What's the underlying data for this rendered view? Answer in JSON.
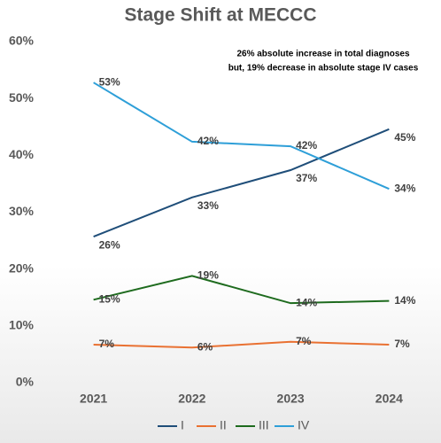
{
  "chart_data": {
    "type": "line",
    "title": "Stage Shift at MECCC",
    "annotations": [
      "26% absolute increase in total diagnoses",
      "but, 19% decrease in absolute stage IV cases"
    ],
    "categories": [
      "2021",
      "2022",
      "2023",
      "2024"
    ],
    "series": [
      {
        "name": "I",
        "color": "#1f4e79",
        "values": [
          25.7,
          32.6,
          37.4,
          44.6
        ],
        "value_labels": [
          "26%",
          "33%",
          "37%",
          "45%"
        ]
      },
      {
        "name": "II",
        "color": "#e97132",
        "values": [
          6.7,
          6.2,
          7.2,
          6.7
        ],
        "value_labels": [
          "7%",
          "6%",
          "7%",
          "7%"
        ]
      },
      {
        "name": "III",
        "color": "#1e6b1e",
        "values": [
          14.6,
          18.8,
          14.0,
          14.4
        ],
        "value_labels": [
          "15%",
          "19%",
          "14%",
          "14%"
        ]
      },
      {
        "name": "IV",
        "color": "#2e9fd8",
        "values": [
          52.8,
          42.4,
          41.6,
          34.1
        ],
        "value_labels": [
          "53%",
          "42%",
          "42%",
          "34%"
        ]
      }
    ],
    "ylim": [
      0,
      60
    ],
    "yticks": [
      {
        "value": 0,
        "label": "0%"
      },
      {
        "value": 10,
        "label": "10%"
      },
      {
        "value": 20,
        "label": "20%"
      },
      {
        "value": 30,
        "label": "30%"
      },
      {
        "value": 40,
        "label": "40%"
      },
      {
        "value": 50,
        "label": "50%"
      },
      {
        "value": 60,
        "label": "60%"
      }
    ],
    "grid": false,
    "legend": "bottom"
  }
}
